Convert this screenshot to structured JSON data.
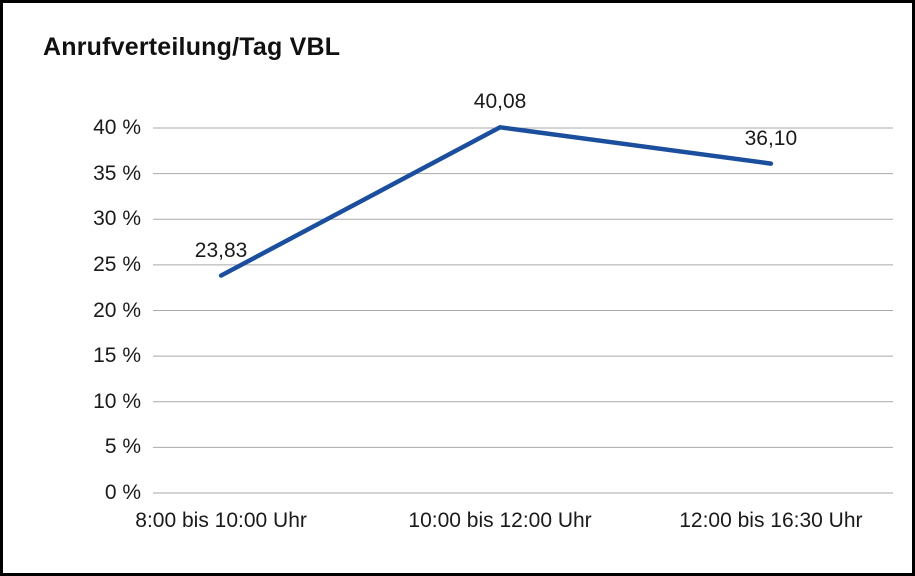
{
  "title": "Anrufverteilung/Tag VBL",
  "chart_data": {
    "type": "line",
    "title": "Anrufverteilung/Tag VBL",
    "categories": [
      "8:00 bis 10:00 Uhr",
      "10:00 bis 12:00 Uhr",
      "12:00 bis 16:30 Uhr"
    ],
    "values": [
      23.83,
      40.08,
      36.1
    ],
    "data_labels": [
      "23,83",
      "40,08",
      "36,10"
    ],
    "xlabel": "",
    "ylabel": "",
    "ylim": [
      0,
      40
    ],
    "ytick_values": [
      0,
      5,
      10,
      15,
      20,
      25,
      30,
      35,
      40
    ],
    "ytick_labels": [
      "0 %",
      "5 %",
      "10 %",
      "15 %",
      "20 %",
      "25 %",
      "30 %",
      "35 %",
      "40 %"
    ],
    "grid": true,
    "legend": "none",
    "line_color": "#1b4f9e",
    "grid_color": "#a9a9a9",
    "text_color": "#1a1a1a",
    "background_color": "#ffffff",
    "border_color": "#000000"
  }
}
